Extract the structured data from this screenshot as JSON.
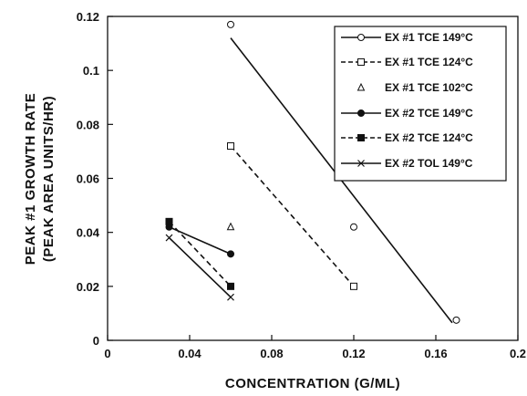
{
  "chart_data": {
    "type": "scatter",
    "xlabel": "CONCENTRATION  (G/ML)",
    "ylabel_line1": "PEAK #1 GROWTH RATE",
    "ylabel_line2": "(PEAK AREA UNITS/HR)",
    "xlim": [
      0,
      0.2
    ],
    "ylim": [
      0,
      0.12
    ],
    "xticks": [
      0,
      0.04,
      0.08,
      0.12,
      0.16,
      0.2
    ],
    "xtick_labels": [
      "0",
      "0.04",
      "0.08",
      "0.12",
      "0.16",
      "0.2"
    ],
    "yticks": [
      0,
      0.02,
      0.04,
      0.06,
      0.08,
      0.1,
      0.12
    ],
    "ytick_labels": [
      "0",
      "0.02",
      "0.04",
      "0.06",
      "0.08",
      "0.1",
      "0.12"
    ],
    "legend_position": "top-right",
    "series": [
      {
        "name": "EX #1 TCE 149°C",
        "marker": "open-circle",
        "line": "solid",
        "points": [
          [
            0.06,
            0.117
          ],
          [
            0.12,
            0.042
          ],
          [
            0.17,
            0.0075
          ]
        ],
        "fit": [
          [
            0.06,
            0.112
          ],
          [
            0.168,
            0.0065
          ]
        ]
      },
      {
        "name": "EX #1 TCE 124°C",
        "marker": "open-square",
        "line": "dashed",
        "points": [
          [
            0.06,
            0.072
          ],
          [
            0.12,
            0.02
          ]
        ],
        "fit": [
          [
            0.06,
            0.072
          ],
          [
            0.12,
            0.02
          ]
        ]
      },
      {
        "name": "EX #1 TCE 102°C",
        "marker": "open-triangle",
        "line": "none",
        "points": [
          [
            0.06,
            0.042
          ]
        ]
      },
      {
        "name": "EX #2 TCE 149°C",
        "marker": "filled-circle",
        "line": "solid",
        "points": [
          [
            0.03,
            0.042
          ],
          [
            0.06,
            0.032
          ]
        ],
        "fit": [
          [
            0.03,
            0.042
          ],
          [
            0.06,
            0.032
          ]
        ]
      },
      {
        "name": "EX #2 TCE 124°C",
        "marker": "filled-square",
        "line": "dashed",
        "points": [
          [
            0.03,
            0.044
          ],
          [
            0.06,
            0.02
          ]
        ],
        "fit": [
          [
            0.03,
            0.044
          ],
          [
            0.06,
            0.02
          ]
        ]
      },
      {
        "name": "EX #2 TOL 149°C",
        "marker": "x",
        "line": "solid",
        "points": [
          [
            0.03,
            0.038
          ],
          [
            0.06,
            0.016
          ]
        ],
        "fit": [
          [
            0.03,
            0.038
          ],
          [
            0.06,
            0.016
          ]
        ]
      }
    ]
  }
}
